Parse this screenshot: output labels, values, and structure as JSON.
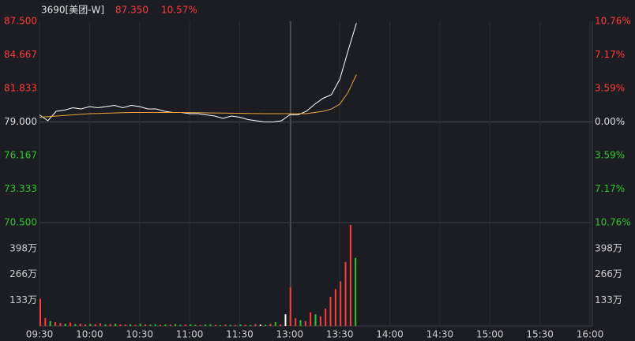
{
  "chart_data": [
    {
      "type": "line",
      "title": "3690[美团-W]",
      "annotations": [
        "87.350",
        "10.57%"
      ],
      "x": [
        0,
        5,
        10,
        15,
        20,
        25,
        30,
        35,
        40,
        45,
        50,
        55,
        60,
        65,
        70,
        75,
        80,
        85,
        90,
        95,
        100,
        105,
        110,
        115,
        120,
        125,
        130,
        135,
        140,
        145,
        150,
        155,
        160,
        165,
        170,
        175,
        180,
        185,
        190
      ],
      "series": [
        {
          "color": "#ffffff",
          "values": [
            79.6,
            79.1,
            79.9,
            80.0,
            80.2,
            80.1,
            80.3,
            80.2,
            80.3,
            80.4,
            80.2,
            80.4,
            80.3,
            80.1,
            80.1,
            79.9,
            79.8,
            79.8,
            79.7,
            79.7,
            79.6,
            79.5,
            79.3,
            79.5,
            79.4,
            79.2,
            79.1,
            79.0,
            79.0,
            79.1,
            79.6,
            79.6,
            79.9,
            80.5,
            81.0,
            81.3,
            82.6,
            85.0,
            87.35
          ]
        },
        {
          "color": "#e8a33a",
          "values": [
            79.4,
            79.45,
            79.5,
            79.55,
            79.6,
            79.65,
            79.7,
            79.72,
            79.74,
            79.76,
            79.78,
            79.8,
            79.8,
            79.8,
            79.8,
            79.8,
            79.8,
            79.8,
            79.79,
            79.78,
            79.77,
            79.76,
            79.75,
            79.74,
            79.73,
            79.72,
            79.71,
            79.7,
            79.7,
            79.7,
            79.7,
            79.7,
            79.7,
            79.8,
            79.9,
            80.1,
            80.5,
            81.5,
            83.0
          ]
        }
      ],
      "xlim": [
        0,
        330
      ],
      "xticks": [
        {
          "value": 0,
          "label": "09:30"
        },
        {
          "value": 30,
          "label": "10:00"
        },
        {
          "value": 60,
          "label": "10:30"
        },
        {
          "value": 90,
          "label": "11:00"
        },
        {
          "value": 120,
          "label": "11:30"
        },
        {
          "value": 150,
          "label": "13:00"
        },
        {
          "value": 180,
          "label": "13:30"
        },
        {
          "value": 210,
          "label": "14:00"
        },
        {
          "value": 240,
          "label": "14:30"
        },
        {
          "value": 270,
          "label": "15:00"
        },
        {
          "value": 300,
          "label": "15:30"
        },
        {
          "value": 330,
          "label": "16:00"
        }
      ],
      "ylim": [
        70.5,
        87.5
      ],
      "yticks": [
        {
          "value": 87.5,
          "label": "87.500"
        },
        {
          "value": 84.667,
          "label": "84.667"
        },
        {
          "value": 81.833,
          "label": "81.833"
        },
        {
          "value": 79,
          "label": "79.000"
        },
        {
          "value": 76.167,
          "label": "76.167"
        },
        {
          "value": 73.333,
          "label": "73.333"
        },
        {
          "value": 70.5,
          "label": "70.500"
        }
      ],
      "y2lim": [
        -10.76,
        10.76
      ],
      "y2ticks": [
        {
          "value": 10.76,
          "label": "10.76%"
        },
        {
          "value": 7.17,
          "label": "7.17%"
        },
        {
          "value": 3.59,
          "label": "3.59%"
        },
        {
          "value": 0,
          "label": "0.00%"
        },
        {
          "value": -3.59,
          "label": "3.59%"
        },
        {
          "value": -7.17,
          "label": "7.17%"
        },
        {
          "value": -10.76,
          "label": "10.76%"
        }
      ],
      "up_color": "#ff3b3b",
      "down_color": "#2fc42f",
      "flat_color": "#dddddd"
    },
    {
      "type": "bar",
      "x": [
        0,
        3,
        6,
        9,
        12,
        15,
        18,
        21,
        24,
        27,
        30,
        33,
        36,
        39,
        42,
        45,
        48,
        51,
        54,
        57,
        60,
        63,
        66,
        69,
        72,
        75,
        78,
        81,
        84,
        87,
        90,
        93,
        96,
        99,
        102,
        105,
        108,
        111,
        114,
        117,
        120,
        123,
        126,
        129,
        132,
        135,
        138,
        141,
        144,
        147,
        150,
        153,
        156,
        159,
        162,
        165,
        168,
        171,
        174,
        177,
        180,
        183,
        186,
        189
      ],
      "values": [
        140,
        40,
        25,
        20,
        15,
        12,
        18,
        10,
        12,
        8,
        10,
        9,
        14,
        8,
        10,
        12,
        8,
        7,
        9,
        6,
        11,
        8,
        7,
        9,
        6,
        8,
        7,
        10,
        6,
        7,
        8,
        6,
        5,
        7,
        9,
        6,
        5,
        7,
        6,
        5,
        8,
        6,
        5,
        10,
        7,
        6,
        12,
        20,
        8,
        60,
        200,
        40,
        30,
        25,
        70,
        60,
        50,
        90,
        150,
        190,
        230,
        330,
        520,
        350
      ],
      "colors": [
        "#ff3b3b",
        "#ff3b3b",
        "#2fc42f",
        "#ff3b3b",
        "#ff3b3b",
        "#2fc42f",
        "#ff3b3b",
        "#2fc42f",
        "#ff3b3b",
        "#ff3b3b",
        "#2fc42f",
        "#ff3b3b",
        "#ff3b3b",
        "#2fc42f",
        "#ff3b3b",
        "#2fc42f",
        "#ff3b3b",
        "#ff3b3b",
        "#2fc42f",
        "#ff3b3b",
        "#2fc42f",
        "#ff3b3b",
        "#2fc42f",
        "#2fc42f",
        "#ff3b3b",
        "#2fc42f",
        "#ff3b3b",
        "#2fc42f",
        "#2fc42f",
        "#ff3b3b",
        "#2fc42f",
        "#2fc42f",
        "#ff3b3b",
        "#2fc42f",
        "#2fc42f",
        "#ff3b3b",
        "#2fc42f",
        "#ff3b3b",
        "#2fc42f",
        "#ff3b3b",
        "#2fc42f",
        "#ff3b3b",
        "#2fc42f",
        "#ff3b3b",
        "#ffffff",
        "#2fc42f",
        "#ff3b3b",
        "#2fc42f",
        "#ff3b3b",
        "#ffffff",
        "#ff3b3b",
        "#ff3b3b",
        "#2fc42f",
        "#ff3b3b",
        "#ff3b3b",
        "#2fc42f",
        "#ff3b3b",
        "#ff3b3b",
        "#ff3b3b",
        "#ff3b3b",
        "#ff3b3b",
        "#ff3b3b",
        "#ff3b3b",
        "#2fc42f"
      ],
      "xlim": [
        0,
        330
      ],
      "ylim": [
        0,
        532
      ],
      "yticks": [
        {
          "value": 398,
          "label": "398万"
        },
        {
          "value": 266,
          "label": "266万"
        },
        {
          "value": 133,
          "label": "133万"
        }
      ]
    }
  ]
}
